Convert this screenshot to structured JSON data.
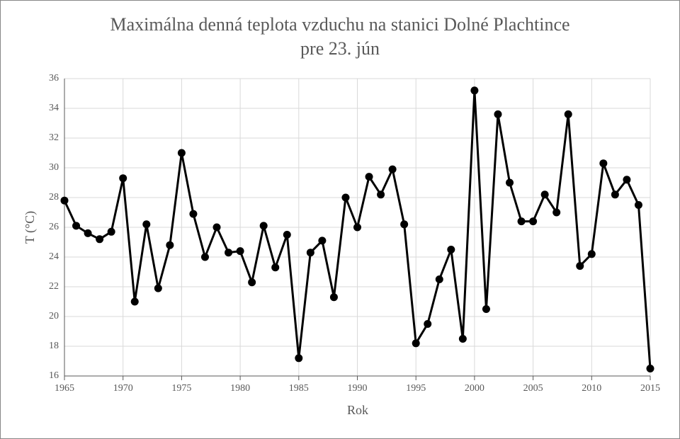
{
  "chart_data": {
    "type": "line",
    "title": [
      "Maximálna denná teplota vzduchu na stanici Dolné Plachtince",
      "pre 23. jún"
    ],
    "x_label": "Rok",
    "y_label": "T (°C)",
    "x": [
      1965,
      1966,
      1967,
      1968,
      1969,
      1970,
      1971,
      1972,
      1973,
      1974,
      1975,
      1976,
      1977,
      1978,
      1979,
      1980,
      1981,
      1982,
      1983,
      1984,
      1985,
      1986,
      1987,
      1988,
      1989,
      1990,
      1991,
      1992,
      1993,
      1994,
      1995,
      1996,
      1997,
      1998,
      1999,
      2000,
      2001,
      2002,
      2003,
      2004,
      2005,
      2006,
      2007,
      2008,
      2009,
      2010,
      2011,
      2012,
      2013,
      2014,
      2015
    ],
    "series": [
      {
        "color": "#000000",
        "values": [
          27.8,
          26.1,
          25.6,
          25.2,
          25.7,
          29.3,
          21.0,
          26.2,
          21.9,
          24.8,
          31.0,
          26.9,
          24.0,
          26.0,
          24.3,
          24.4,
          22.3,
          26.1,
          23.3,
          25.5,
          17.2,
          24.3,
          25.1,
          21.3,
          28.0,
          26.0,
          29.4,
          28.2,
          29.9,
          26.2,
          18.2,
          19.5,
          22.5,
          24.5,
          18.5,
          35.2,
          20.5,
          33.6,
          29.0,
          26.4,
          26.4,
          28.2,
          27.0,
          33.6,
          23.4,
          24.2,
          30.3,
          28.2,
          29.2,
          27.5,
          16.5
        ]
      }
    ],
    "xlim": [
      1965,
      2015
    ],
    "xticks": [
      1965,
      1970,
      1975,
      1980,
      1985,
      1990,
      1995,
      2000,
      2005,
      2010,
      2015
    ],
    "ylim": [
      16,
      36
    ],
    "yticks": [
      16,
      18,
      20,
      22,
      24,
      26,
      28,
      30,
      32,
      34,
      36
    ],
    "grid": true
  }
}
